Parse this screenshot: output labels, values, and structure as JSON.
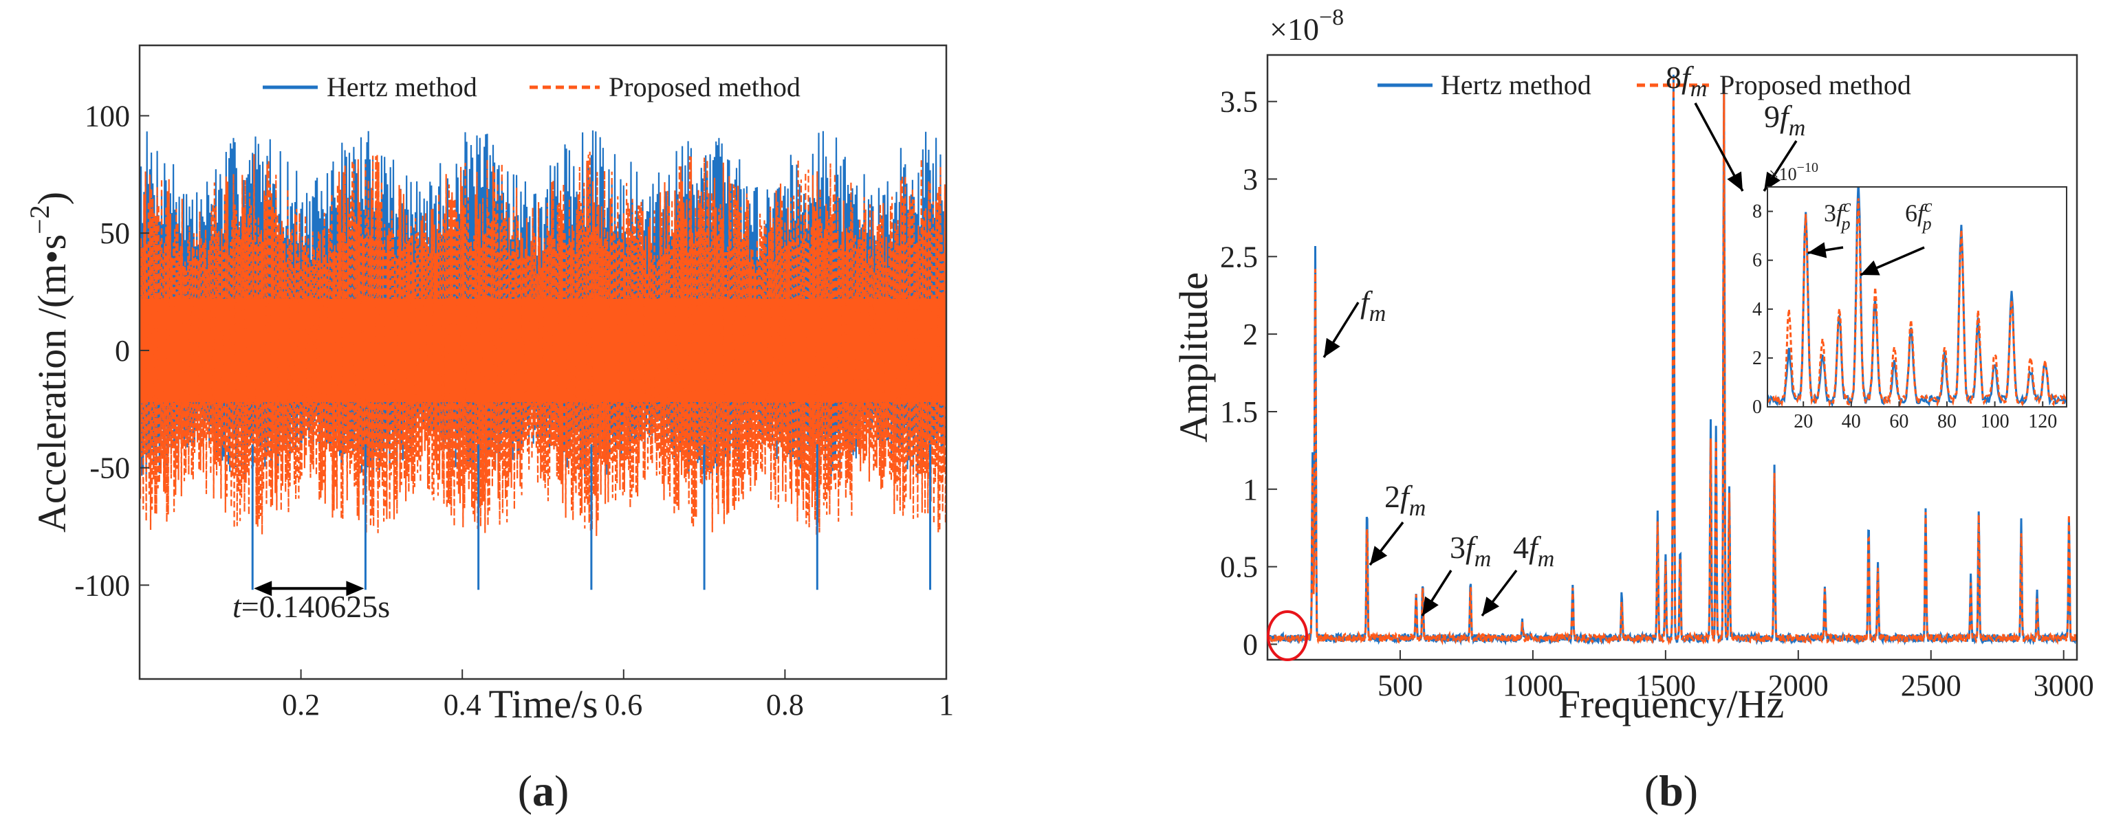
{
  "colors": {
    "hertz": "#1f73c4",
    "proposed": "#ff5a1a",
    "axis": "#333333",
    "arrow": "#000000",
    "circle": "#e8141a"
  },
  "panel_labels": {
    "a_open": "(",
    "a": "a",
    "a_close": ")",
    "b_open": "(",
    "b": "b",
    "b_close": ")"
  },
  "chart_data": [
    {
      "id": "a",
      "type": "line",
      "xlabel": "Time/s",
      "ylabel_prefix": "Acceleration /(m",
      "ylabel_dot": "•",
      "ylabel_s": "s",
      "ylabel_exp": "−2",
      "ylabel_suffix": ")",
      "xlim": [
        0.0,
        1.0
      ],
      "ylim": [
        -140,
        130
      ],
      "xticks": [
        0.2,
        0.4,
        0.6,
        0.8,
        1
      ],
      "xtick_labels": [
        "0.2",
        "0.4",
        "0.6",
        "0.8",
        "1"
      ],
      "yticks": [
        -100,
        -50,
        0,
        50,
        100
      ],
      "ytick_labels": [
        "-100",
        "-50",
        "0",
        "50",
        "100"
      ],
      "legend": {
        "placement": "top",
        "entries": [
          "Hertz method",
          "Proposed method"
        ]
      },
      "series": [
        {
          "name": "Hertz method",
          "style": "solid",
          "envelope_max": 95,
          "envelope_min": -102,
          "impact_spikes_t": [
            0.14,
            0.28,
            0.42,
            0.56,
            0.7,
            0.84,
            0.98
          ],
          "impact_spike_value": -102
        },
        {
          "name": "Proposed method",
          "style": "dashed",
          "envelope_max": 85,
          "envelope_min": -80
        }
      ],
      "annotation": {
        "t_symbol": "t",
        "text": "=0.140625s",
        "interval": [
          0.14,
          0.28
        ],
        "y": -102
      }
    },
    {
      "id": "b",
      "type": "line",
      "xlabel": "Frequency/Hz",
      "ylabel": "Amplitude",
      "scale_label_base": "×10",
      "scale_label_exp": "−8",
      "xlim": [
        0,
        3050
      ],
      "ylim": [
        -0.1,
        3.8
      ],
      "xticks": [
        500,
        1000,
        1500,
        2000,
        2500,
        3000
      ],
      "xtick_labels": [
        "500",
        "1000",
        "1500",
        "2000",
        "2500",
        "3000"
      ],
      "yticks": [
        0,
        0.5,
        1,
        1.5,
        2,
        2.5,
        3,
        3.5
      ],
      "ytick_labels": [
        "0",
        "0.5",
        "1",
        "1.5",
        "2",
        "2.5",
        "3",
        "3.5"
      ],
      "legend": {
        "placement": "top",
        "entries": [
          "Hertz method",
          "Proposed method"
        ]
      },
      "peaks": [
        [
          180,
          2.55,
          2.4
        ],
        [
          170,
          1.2,
          1.1
        ],
        [
          375,
          0.85,
          0.78
        ],
        [
          560,
          0.3,
          0.28
        ],
        [
          585,
          0.35,
          0.33
        ],
        [
          765,
          0.38,
          0.35
        ],
        [
          960,
          0.12,
          0.1
        ],
        [
          1150,
          0.35,
          0.3
        ],
        [
          1335,
          0.3,
          0.25
        ],
        [
          1470,
          0.8,
          0.75
        ],
        [
          1500,
          0.55,
          0.5
        ],
        [
          1530,
          3.62,
          3.62
        ],
        [
          1555,
          0.6,
          0.55
        ],
        [
          1670,
          1.4,
          1.3
        ],
        [
          1690,
          1.35,
          1.25
        ],
        [
          1720,
          3.62,
          3.6
        ],
        [
          1740,
          1.0,
          0.95
        ],
        [
          1910,
          1.1,
          1.05
        ],
        [
          2100,
          0.35,
          0.3
        ],
        [
          2265,
          0.78,
          0.72
        ],
        [
          2300,
          0.5,
          0.45
        ],
        [
          2480,
          0.85,
          0.82
        ],
        [
          2650,
          0.4,
          0.35
        ],
        [
          2680,
          0.82,
          0.78
        ],
        [
          2840,
          0.75,
          0.7
        ],
        [
          2900,
          0.3,
          0.25
        ],
        [
          3020,
          0.8,
          0.78
        ]
      ],
      "annotations": [
        {
          "coef": "",
          "sub": "m",
          "peak_hz": 180
        },
        {
          "coef": "2",
          "sub": "m",
          "peak_hz": 375
        },
        {
          "coef": "3",
          "sub": "m",
          "peak_hz": 600
        },
        {
          "coef": "4",
          "sub": "m",
          "peak_hz": 770
        },
        {
          "coef": "8",
          "sub": "m",
          "peak_hz": 1530
        },
        {
          "coef": "9",
          "sub": "m",
          "peak_hz": 1720
        }
      ],
      "highlight_region_hz": [
        0,
        130
      ],
      "inset": {
        "scale_label_base": "×10",
        "scale_label_exp": "−10",
        "xlim": [
          5,
          130
        ],
        "ylim": [
          0,
          9
        ],
        "xticks": [
          20,
          40,
          60,
          80,
          100,
          120
        ],
        "xtick_labels": [
          "20",
          "40",
          "60",
          "80",
          "100",
          "120"
        ],
        "yticks": [
          0,
          2,
          4,
          6,
          8
        ],
        "ytick_labels": [
          "0",
          "2",
          "4",
          "6",
          "8"
        ],
        "peaks": [
          [
            14,
            2.0,
            3.8
          ],
          [
            21,
            7.8,
            7.6
          ],
          [
            28,
            2.0,
            2.6
          ],
          [
            35,
            3.5,
            3.9
          ],
          [
            43,
            9.0,
            8.2
          ],
          [
            50,
            4.2,
            4.6
          ],
          [
            58,
            1.6,
            2.2
          ],
          [
            65,
            3.0,
            3.3
          ],
          [
            79,
            1.8,
            2.3
          ],
          [
            86,
            7.2,
            7.0
          ],
          [
            93,
            3.2,
            3.6
          ],
          [
            100,
            1.5,
            2.0
          ],
          [
            107,
            4.4,
            4.2
          ],
          [
            115,
            1.2,
            1.8
          ],
          [
            121,
            1.5,
            1.7
          ]
        ],
        "annotations": [
          {
            "coef": "3",
            "sub": "p",
            "sup": "c",
            "peak_hz": 21
          },
          {
            "coef": "6",
            "sub": "p",
            "sup": "c",
            "peak_hz": 43
          }
        ]
      }
    }
  ]
}
